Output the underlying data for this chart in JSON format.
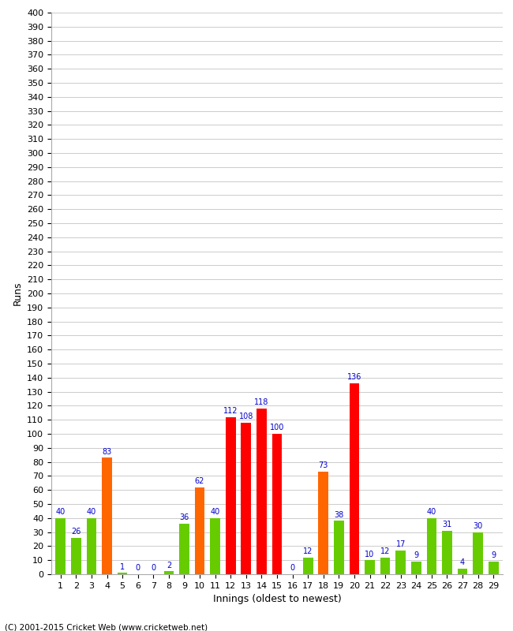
{
  "innings": [
    1,
    2,
    3,
    4,
    5,
    6,
    7,
    8,
    9,
    10,
    11,
    12,
    13,
    14,
    15,
    16,
    17,
    18,
    19,
    20,
    21,
    22,
    23,
    24,
    25,
    26,
    27,
    28,
    29
  ],
  "values": [
    40,
    26,
    40,
    83,
    1,
    0,
    0,
    2,
    36,
    62,
    40,
    112,
    108,
    118,
    100,
    0,
    12,
    73,
    38,
    136,
    10,
    12,
    17,
    9,
    40,
    31,
    4,
    30,
    9
  ],
  "colors": [
    "#66cc00",
    "#66cc00",
    "#66cc00",
    "#ff6600",
    "#66cc00",
    "#66cc00",
    "#66cc00",
    "#66cc00",
    "#66cc00",
    "#ff6600",
    "#66cc00",
    "#ff0000",
    "#ff0000",
    "#ff0000",
    "#ff0000",
    "#66cc00",
    "#66cc00",
    "#ff6600",
    "#66cc00",
    "#ff0000",
    "#66cc00",
    "#66cc00",
    "#66cc00",
    "#66cc00",
    "#66cc00",
    "#66cc00",
    "#66cc00",
    "#66cc00",
    "#66cc00"
  ],
  "xlabel": "Innings (oldest to newest)",
  "ylabel": "Runs",
  "ylim": [
    0,
    400
  ],
  "yticks": [
    0,
    10,
    20,
    30,
    40,
    50,
    60,
    70,
    80,
    90,
    100,
    110,
    120,
    130,
    140,
    150,
    160,
    170,
    180,
    190,
    200,
    210,
    220,
    230,
    240,
    250,
    260,
    270,
    280,
    290,
    300,
    310,
    320,
    330,
    340,
    350,
    360,
    370,
    380,
    390,
    400
  ],
  "label_color": "#0000cc",
  "bg_color": "#ffffff",
  "grid_color": "#cccccc",
  "footer": "(C) 2001-2015 Cricket Web (www.cricketweb.net)",
  "tick_fontsize": 8,
  "label_fontsize": 9,
  "bar_width": 0.65
}
